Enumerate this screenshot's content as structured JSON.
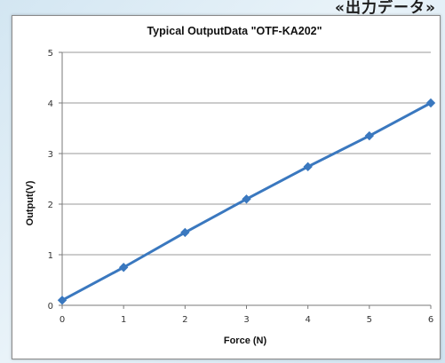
{
  "banner": {
    "text": "«出力データ»"
  },
  "chart_data": {
    "type": "line",
    "title": "Typical OutputData \"OTF-KA202\"",
    "xlabel": "Force (N)",
    "ylabel": "Output(V)",
    "xlim": [
      0,
      6
    ],
    "ylim": [
      0,
      5
    ],
    "x_ticks": [
      0,
      1,
      2,
      3,
      4,
      5,
      6
    ],
    "y_ticks": [
      0,
      1,
      2,
      3,
      4,
      5
    ],
    "grid": {
      "horizontal": true,
      "vertical": false
    },
    "legend": "none",
    "series": [
      {
        "x": [
          0,
          1,
          2,
          3,
          4,
          5,
          6
        ],
        "values": [
          0.1,
          0.75,
          1.44,
          2.1,
          2.74,
          3.35,
          4.0
        ],
        "color": "#3a78bf",
        "marker": "diamond"
      }
    ]
  }
}
